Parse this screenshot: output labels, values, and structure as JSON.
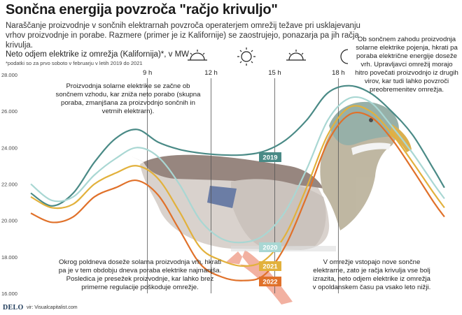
{
  "title": "Sončna energija povzroča \"račjo krivuljo\"",
  "subtitle": "Naraščanje proizvodnje v sončnih elektrarnah povzroča operaterjem omrežij težave pri usklajevanju vrhov proizvodnje in porabe. Razmere (primer je iz Kalifornije) se zaostrujejo, ponazarja pa jih račja krivulja.",
  "footer": {
    "logo": "DELO",
    "source": "vir: Visualcapitalist.com"
  },
  "annotations": {
    "morning": "Proizvodnja solarne elektrike se začne ob sončnem vzhodu, kar zniža neto porabo (skupna poraba, zmanjšana za proizvodnjo sončnih in vetrnih elektrarn).",
    "evening": "Ob sončnem zahodu proizvodnja solarne elektrike pojenja, hkrati pa poraba električne energije doseže vrh. Upravljavci omrežij morajo hitro povečati proizvodnjo iz drugih virov, kar tudi lahko povzroči preobremenitev omrežja.",
    "noon": "Okrog poldneva doseže solarna proizvodnja vrh, hkrati pa je v tem obdobju dneva poraba elektrike najmanjša. Posledica je presežek proizvodnje, kar lahko brez primerne regulacije poškoduje omrežje.",
    "overgen": "V omrežje vstopajo nove sončne elektrarne, zato je račja krivulja vse bolj izrazita, neto odjem elektrike iz omrežja v opoldanskem času pa vsako leto nižji."
  },
  "icons": {
    "hour_9": "sunrise-icon",
    "hour_12": "sun-icon",
    "hour_15": "sunset-icon",
    "hour_18": "moon-icon",
    "background": "duck-illustration"
  },
  "colors": {
    "2019": "#4a8a86",
    "2020": "#a9d7d3",
    "2021": "#e2b13c",
    "2022": "#e0712a"
  },
  "chart_data": {
    "type": "line",
    "title": "Neto odjem elektrike iz omrežja (Kalifornija)*, v MW",
    "note": "*podatki so za prvo soboto v februarju v letih 2019 do 2021",
    "xlabel": "",
    "ylabel": "",
    "x_ticks": [
      9,
      12,
      15,
      18
    ],
    "x_tick_labels": [
      "9 h",
      "12 h",
      "15 h",
      "18 h"
    ],
    "xlim": [
      3.5,
      23.5
    ],
    "ylim": [
      16000,
      28000
    ],
    "y_ticks": [
      16000,
      18000,
      20000,
      22000,
      24000,
      26000,
      28000
    ],
    "y_tick_labels": [
      "16.000",
      "18.000",
      "20.000",
      "22.000",
      "24.000",
      "26.000",
      "28.000"
    ],
    "x": [
      3.5,
      4.5,
      5.5,
      6.5,
      7.5,
      8.5,
      9.5,
      10.5,
      11.5,
      12.5,
      13.5,
      14.5,
      15.5,
      16.5,
      17.5,
      18.5,
      19.5,
      20.5,
      21.5,
      22.5,
      23
    ],
    "series": [
      {
        "name": "2019",
        "values": [
          21500,
          20800,
          21500,
          23200,
          24500,
          25000,
          24300,
          23900,
          23700,
          23600,
          23600,
          23800,
          24400,
          25500,
          27000,
          27400,
          27000,
          26000,
          24700,
          22800,
          21800
        ]
      },
      {
        "name": "2020",
        "values": [
          22000,
          21100,
          21300,
          22500,
          23400,
          24000,
          23500,
          22000,
          20000,
          19000,
          18800,
          19200,
          20500,
          22800,
          25500,
          26700,
          26500,
          25200,
          23700,
          22000,
          21200
        ]
      },
      {
        "name": "2021",
        "values": [
          21300,
          20700,
          20900,
          22000,
          22600,
          23000,
          22300,
          20500,
          18500,
          17800,
          17500,
          17800,
          19200,
          21800,
          24700,
          26200,
          26000,
          24800,
          23200,
          21500,
          20700
        ]
      },
      {
        "name": "2022",
        "values": [
          20400,
          19900,
          20200,
          21300,
          21800,
          22200,
          21400,
          19500,
          17600,
          16900,
          16700,
          17000,
          18600,
          21300,
          24300,
          25800,
          25700,
          24500,
          22800,
          21000,
          20200
        ]
      }
    ],
    "series_labels": [
      "2019",
      "2020",
      "2021",
      "2022"
    ],
    "grid": false,
    "legend": "none"
  }
}
